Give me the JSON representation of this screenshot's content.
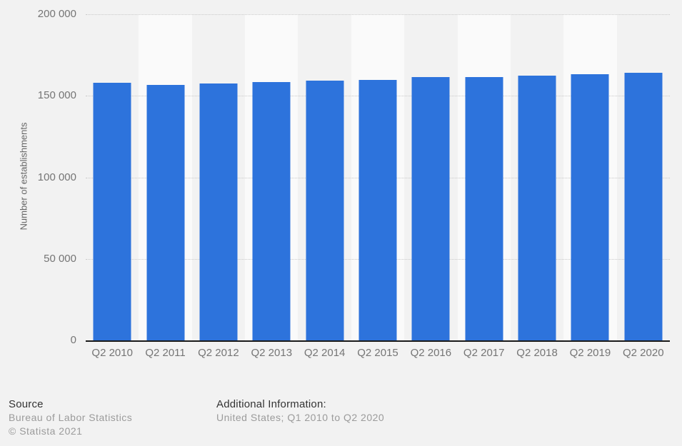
{
  "chart_data": {
    "type": "bar",
    "categories": [
      "Q2 2010",
      "Q2 2011",
      "Q2 2012",
      "Q2 2013",
      "Q2 2014",
      "Q2 2015",
      "Q2 2016",
      "Q2 2017",
      "Q2 2018",
      "Q2 2019",
      "Q2 2020"
    ],
    "values": [
      157900,
      156800,
      157700,
      158600,
      159500,
      159800,
      161600,
      161300,
      162500,
      163100,
      164000
    ],
    "title": "",
    "xlabel": "",
    "ylabel": "Number of establishments",
    "ylim": [
      0,
      200000
    ],
    "ytick_labels": [
      "0",
      "50 000",
      "100 000",
      "150 000",
      "200 000"
    ],
    "grid": "horizontal dotted",
    "legend": "none",
    "bar_color": "#2d73dc",
    "band_colors": [
      "#f2f2f2",
      "#fafafa"
    ]
  },
  "footer": {
    "source_heading": "Source",
    "source_name": "Bureau of Labor Statistics",
    "copyright": "© Statista 2021",
    "additional_heading": "Additional Information:",
    "additional_text": "United States; Q1 2010 to Q2 2020"
  }
}
